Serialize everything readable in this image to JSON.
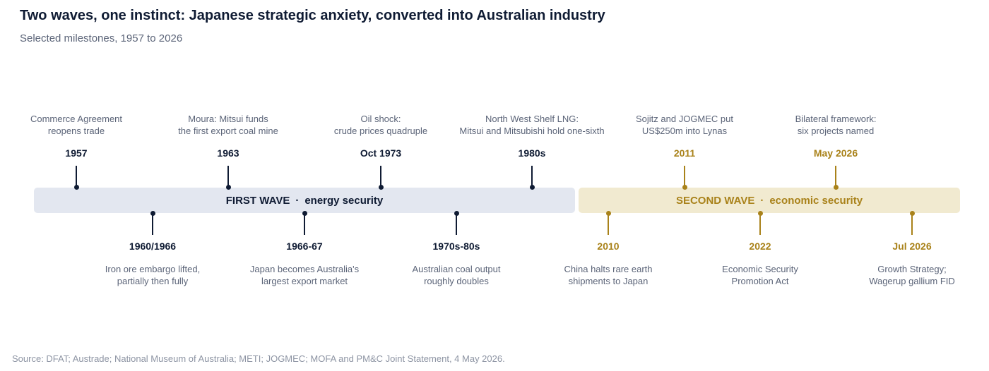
{
  "title": "Two waves, one instinct: Japanese strategic anxiety, converted into Australian industry",
  "subtitle": "Selected milestones, 1957 to 2026",
  "waves": {
    "first": {
      "label": "FIRST WAVE",
      "separator": "·",
      "theme": "energy security"
    },
    "second": {
      "label": "SECOND WAVE",
      "separator": "·",
      "theme": "economic security"
    }
  },
  "events": [
    {
      "id": "e1957",
      "year": "1957",
      "line1": "Commerce Agreement",
      "line2": "reopens trade"
    },
    {
      "id": "e1960",
      "year": "1960/1966",
      "line1": "Iron ore embargo lifted,",
      "line2": "partially then fully"
    },
    {
      "id": "e1963",
      "year": "1963",
      "line1": "Moura: Mitsui funds",
      "line2": "the first export coal mine"
    },
    {
      "id": "e1966",
      "year": "1966-67",
      "line1": "Japan becomes Australia's",
      "line2": "largest export market"
    },
    {
      "id": "e1973",
      "year": "Oct 1973",
      "line1": "Oil shock:",
      "line2": "crude prices quadruple"
    },
    {
      "id": "e1970s",
      "year": "1970s-80s",
      "line1": "Australian coal output",
      "line2": "roughly doubles"
    },
    {
      "id": "e1980s",
      "year": "1980s",
      "line1": "North West Shelf LNG:",
      "line2": "Mitsui and Mitsubishi hold one-sixth"
    },
    {
      "id": "e2010",
      "year": "2010",
      "line1": "China halts rare earth",
      "line2": "shipments to Japan"
    },
    {
      "id": "e2011",
      "year": "2011",
      "line1": "Sojitz and JOGMEC put",
      "line2": "US$250m into Lynas"
    },
    {
      "id": "e2022",
      "year": "2022",
      "line1": "Economic Security",
      "line2": "Promotion Act"
    },
    {
      "id": "e2026may",
      "year": "May 2026",
      "line1": "Bilateral framework:",
      "line2": "six projects named"
    },
    {
      "id": "e2026jul",
      "year": "Jul 2026",
      "line1": "Growth Strategy;",
      "line2": "Wagerup gallium FID"
    }
  ],
  "colors": {
    "first_wave": "#0f1b33",
    "second_wave": "#a9821a",
    "first_band": "#e3e7f0",
    "second_band": "#f1ead0"
  },
  "source": "Source: DFAT; Austrade; National Museum of Australia; METI; JOGMEC; MOFA and PM&C Joint Statement, 4 May 2026."
}
